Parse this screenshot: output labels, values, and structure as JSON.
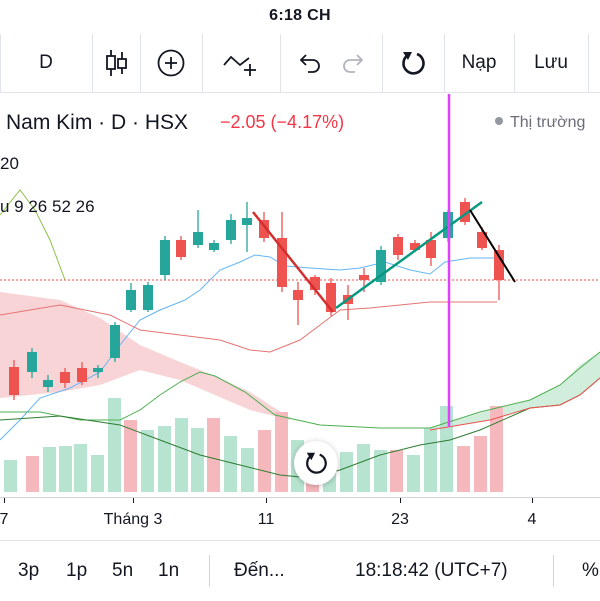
{
  "status_bar": {
    "time": "6:18 CH"
  },
  "toolbar": {
    "interval_label": "D",
    "candles_icon": "candlestick-icon",
    "add_icon": "plus-circle-icon",
    "indicator_icon": "indicator-add-icon",
    "undo_icon": "undo-icon",
    "redo_icon": "redo-icon",
    "reload_icon": "reload-icon",
    "load_label": "Nạp",
    "save_label": "Lưu"
  },
  "legend": {
    "title": "Nam Kim · D · HSX",
    "change": "−2.05 (−4.17%)",
    "market_status": "Thị trường",
    "indicator_1": "20",
    "indicator_2": "u 9 26 52 26"
  },
  "x_axis": {
    "labels": [
      "7",
      "Tháng 3",
      "11",
      "23",
      "4"
    ]
  },
  "bottom_bar": {
    "ranges": [
      "3p",
      "1p",
      "5n",
      "1n"
    ],
    "goto_label": "Đến...",
    "clock": "18:18:42 (UTC+7)",
    "percent_label": "%"
  },
  "colors": {
    "up": "#26a69a",
    "down": "#ef5350",
    "cursor_line": "#e040fb",
    "trend_up": "#089981",
    "trend_down_red": "#d32f2f",
    "trend_down_black": "#000000"
  }
}
